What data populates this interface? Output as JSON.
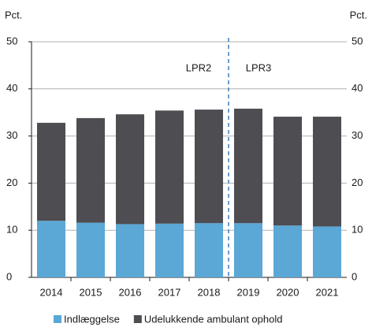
{
  "chart_data": {
    "type": "stacked_bar",
    "y_label": "Pct.",
    "y2_label": "Pct.",
    "categories": [
      "2014",
      "2015",
      "2016",
      "2017",
      "2018",
      "2019",
      "2020",
      "2021"
    ],
    "series": [
      {
        "name": "Indlæggelse",
        "color": "#5ba7d6",
        "values": [
          12.0,
          11.6,
          11.3,
          11.4,
          11.5,
          11.5,
          11.0,
          10.8
        ]
      },
      {
        "name": "Udelukkende ambulant ophold",
        "color": "#4d4d52",
        "values": [
          20.8,
          22.2,
          23.3,
          24.0,
          24.1,
          24.3,
          23.1,
          23.3
        ]
      }
    ],
    "annotations": [
      "LPR2",
      "LPR3"
    ],
    "ylim": [
      0,
      50
    ],
    "yticks": [
      0,
      10,
      20,
      30,
      40,
      50
    ],
    "y2lim": [
      0,
      50
    ],
    "y2ticks": [
      0,
      10,
      20,
      30,
      40,
      50
    ],
    "grid": true
  }
}
